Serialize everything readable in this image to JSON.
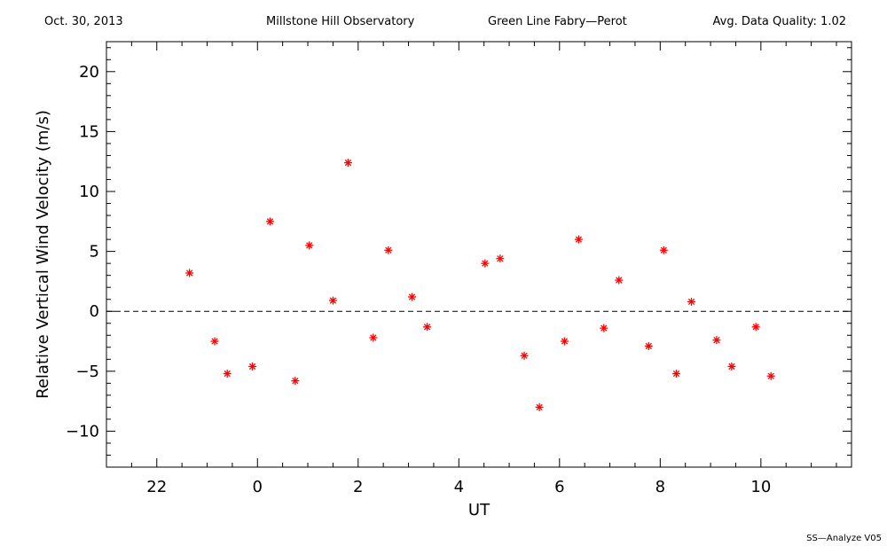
{
  "header": {
    "date": "Oct. 30, 2013",
    "observatory": "Millstone Hill Observatory",
    "instrument": "Green Line Fabry—Perot",
    "quality": "Avg. Data Quality: 1.02"
  },
  "footer": {
    "version": "SS—Analyze V05"
  },
  "colors": {
    "marker": "#ff0000",
    "axis": "#000000",
    "zero_line": "#000000"
  },
  "chart_data": {
    "type": "scatter",
    "title": "",
    "xlabel": "UT",
    "ylabel": "Relative Vertical Wind Velocity (m/s)",
    "xlim": [
      21,
      35.8
    ],
    "ylim": [
      -13,
      22.5
    ],
    "xticks": [
      22,
      24,
      26,
      28,
      30,
      32,
      34
    ],
    "xtick_labels": [
      "22",
      "0",
      "2",
      "4",
      "6",
      "8",
      "10"
    ],
    "yticks": [
      -10,
      -5,
      0,
      5,
      10,
      15,
      20
    ],
    "ytick_labels": [
      "−10",
      "−5",
      "0",
      "5",
      "10",
      "15",
      "20"
    ],
    "zero_line": true,
    "grid": false,
    "marker": "asterisk",
    "series": [
      {
        "x": [
          22.65,
          23.15,
          23.4,
          23.9,
          24.25,
          24.75,
          25.03,
          25.5,
          25.8,
          26.3,
          26.6,
          27.07,
          27.37,
          28.52,
          28.82,
          29.3,
          29.6,
          30.1,
          30.38,
          30.88,
          31.18,
          31.77,
          32.07,
          32.32,
          32.62,
          33.12,
          33.42,
          33.9,
          34.2
        ],
        "y": [
          3.2,
          -2.5,
          -5.2,
          -4.6,
          7.5,
          -5.8,
          5.5,
          0.9,
          12.4,
          -2.2,
          5.1,
          1.2,
          -1.3,
          4.0,
          4.4,
          -3.7,
          -8.0,
          -2.5,
          6.0,
          -1.4,
          2.6,
          -2.9,
          5.1,
          -5.2,
          0.8,
          -2.4,
          -4.6,
          -1.3,
          -5.4
        ]
      }
    ]
  }
}
